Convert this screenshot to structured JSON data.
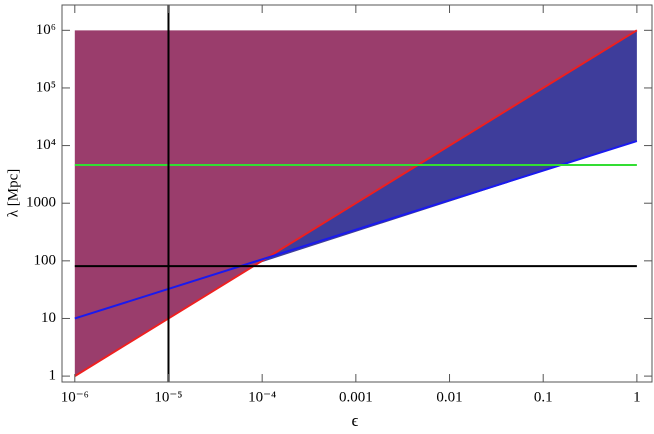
{
  "chart_data": {
    "type": "line",
    "xlabel": "ϵ",
    "ylabel": "λ [Mpc]",
    "log_x": true,
    "log_y": true,
    "xlim": [
      7.3e-07,
      1.45
    ],
    "ylim": [
      0.79,
      2750000
    ],
    "xticks": [
      {
        "value": 1e-06,
        "label": "10⁻⁶"
      },
      {
        "value": 1e-05,
        "label": "10⁻⁵"
      },
      {
        "value": 0.0001,
        "label": "10⁻⁴"
      },
      0.001,
      0.01,
      0.1,
      1
    ],
    "yticks": [
      1,
      10,
      100,
      1000,
      {
        "value": 10000,
        "label": "10⁴"
      },
      {
        "value": 100000,
        "label": "10⁵"
      },
      {
        "value": 1000000,
        "label": "10⁶"
      }
    ],
    "areas": [
      {
        "color": "#9a3d6c",
        "x": [
          1e-06,
          1
        ],
        "lower": [
          1,
          1000000
        ],
        "upper": [
          1000000,
          1000000
        ]
      },
      {
        "color": "#3e3d9b",
        "x": [
          9e-05,
          1
        ],
        "lower": [
          90,
          12000
        ],
        "upper": [
          90,
          1000000
        ]
      }
    ],
    "series": [
      {
        "color": "#ee2020",
        "x": [
          1e-06,
          1
        ],
        "values": [
          1,
          1000000
        ]
      },
      {
        "color": "#1a1aee",
        "x": [
          1e-06,
          1
        ],
        "values": [
          10,
          12000
        ]
      },
      {
        "color": "#33dd33",
        "x": [
          1e-06,
          1
        ],
        "values": [
          4600,
          4600
        ]
      },
      {
        "color": "#000000",
        "x": [
          1e-06,
          1
        ],
        "values": [
          81,
          81
        ]
      }
    ],
    "vlines": [
      {
        "value": 1e-05,
        "color": "#000000"
      }
    ]
  }
}
